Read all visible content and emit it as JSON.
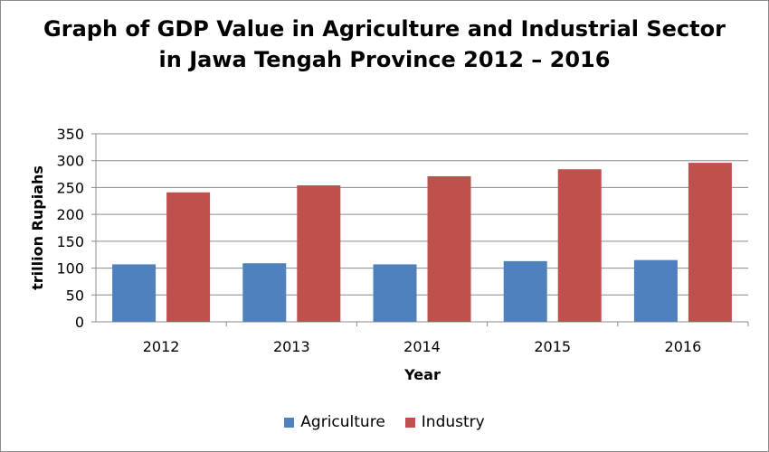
{
  "chart_data": {
    "type": "bar",
    "title_lines": [
      "Graph of GDP Value in Agriculture and Industrial Sector",
      "in Jawa Tengah Province 2012 – 2016"
    ],
    "xlabel": "Year",
    "ylabel": "trillion Rupiahs",
    "categories": [
      "2012",
      "2013",
      "2014",
      "2015",
      "2016"
    ],
    "series": [
      {
        "name": "Agriculture",
        "color": "#4f81bd",
        "values": [
          107,
          109,
          107,
          113,
          115
        ]
      },
      {
        "name": "Industry",
        "color": "#c0504d",
        "values": [
          241,
          254,
          271,
          284,
          296
        ]
      }
    ],
    "ylim": [
      0,
      350
    ],
    "yticks": [
      0,
      50,
      100,
      150,
      200,
      250,
      300,
      350
    ],
    "grid": true,
    "legend_position": "bottom"
  }
}
